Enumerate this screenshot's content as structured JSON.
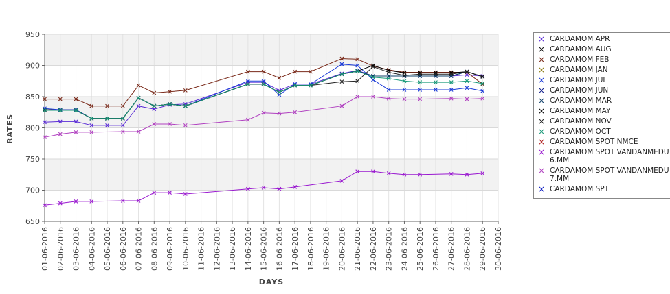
{
  "chart_data": {
    "type": "line",
    "xlabel": "DAYS",
    "ylabel": "RATES",
    "ylim": [
      650,
      950
    ],
    "yticks": [
      650,
      700,
      750,
      800,
      850,
      900,
      950
    ],
    "grid": true,
    "legend_position": "right",
    "x": [
      "01-06-2016",
      "02-06-2016",
      "03-06-2016",
      "04-06-2016",
      "05-06-2016",
      "06-06-2016",
      "07-06-2016",
      "08-06-2016",
      "09-06-2016",
      "10-06-2016",
      "11-06-2016",
      "12-06-2016",
      "13-06-2016",
      "14-06-2016",
      "15-06-2016",
      "16-06-2016",
      "17-06-2016",
      "18-06-2016",
      "19-06-2016",
      "20-06-2016",
      "21-06-2016",
      "22-06-2016",
      "23-06-2016",
      "24-06-2016",
      "25-06-2016",
      "26-06-2016",
      "27-06-2016",
      "28-06-2016",
      "29-06-2016",
      "30-06-2016"
    ],
    "series": [
      {
        "name": "CARDAMOM APR",
        "color": "#5a2bd6",
        "values": [
          809,
          810,
          810,
          804,
          804,
          804,
          835,
          830,
          837,
          838,
          null,
          null,
          null,
          873,
          873,
          860,
          870,
          870,
          null,
          887,
          892,
          883,
          883,
          883,
          883,
          883,
          883,
          885,
          883,
          null
        ]
      },
      {
        "name": "CARDAMOM AUG",
        "color": "#111111",
        "values": [
          829,
          829,
          829,
          815,
          815,
          815,
          848,
          835,
          838,
          835,
          null,
          null,
          null,
          870,
          870,
          857,
          868,
          868,
          null,
          886,
          891,
          883,
          883,
          883,
          883,
          883,
          883,
          890,
          882,
          null
        ]
      },
      {
        "name": "CARDAMOM FEB",
        "color": "#7a2a1a",
        "values": [
          846,
          846,
          846,
          835,
          835,
          835,
          868,
          856,
          858,
          860,
          null,
          null,
          null,
          890,
          890,
          880,
          890,
          890,
          null,
          911,
          910,
          899,
          893,
          889,
          889,
          889,
          889,
          889,
          870,
          null
        ]
      },
      {
        "name": "CARDAMOM JAN",
        "color": "#8a7a10",
        "values": [
          null,
          null,
          null,
          null,
          null,
          null,
          null,
          null,
          null,
          null,
          null,
          null,
          null,
          null,
          null,
          null,
          null,
          null,
          null,
          null,
          null,
          null,
          null,
          null,
          null,
          null,
          null,
          null,
          null,
          null
        ]
      },
      {
        "name": "CARDAMOM JUL",
        "color": "#1a3ad8",
        "values": [
          831,
          829,
          829,
          815,
          815,
          815,
          848,
          835,
          838,
          835,
          null,
          null,
          null,
          875,
          875,
          853,
          870,
          870,
          null,
          902,
          900,
          877,
          861,
          861,
          861,
          861,
          861,
          864,
          859,
          null
        ]
      },
      {
        "name": "CARDAMOM JUN",
        "color": "#0c1a8a",
        "values": [
          828,
          828,
          828,
          815,
          815,
          815,
          848,
          835,
          838,
          835,
          null,
          null,
          null,
          870,
          870,
          857,
          868,
          868,
          null,
          886,
          891,
          883,
          883,
          883,
          883,
          883,
          883,
          890,
          882,
          null
        ]
      },
      {
        "name": "CARDAMOM MAR",
        "color": "#10406a",
        "values": [
          828,
          828,
          828,
          815,
          815,
          815,
          848,
          835,
          838,
          835,
          null,
          null,
          null,
          870,
          870,
          857,
          868,
          868,
          null,
          886,
          891,
          883,
          883,
          883,
          883,
          883,
          883,
          890,
          882,
          null
        ]
      },
      {
        "name": "CARDAMOM MAY",
        "color": "#000000",
        "values": [
          828,
          828,
          828,
          815,
          815,
          815,
          848,
          835,
          838,
          835,
          null,
          null,
          null,
          870,
          870,
          857,
          868,
          868,
          null,
          886,
          891,
          900,
          892,
          888,
          888,
          888,
          888,
          890,
          882,
          null
        ]
      },
      {
        "name": "CARDAMOM NOV",
        "color": "#222222",
        "values": [
          828,
          828,
          828,
          815,
          815,
          815,
          848,
          835,
          838,
          835,
          null,
          null,
          null,
          870,
          870,
          857,
          868,
          868,
          null,
          874,
          875,
          898,
          889,
          884,
          886,
          886,
          886,
          890,
          882,
          null
        ]
      },
      {
        "name": "CARDAMOM OCT",
        "color": "#1a9a7a",
        "values": [
          828,
          828,
          828,
          815,
          815,
          815,
          848,
          835,
          838,
          835,
          null,
          null,
          null,
          870,
          870,
          857,
          868,
          868,
          null,
          886,
          891,
          881,
          879,
          875,
          873,
          873,
          873,
          875,
          871,
          null
        ]
      },
      {
        "name": "CARDAMOM SPOT NMCE",
        "color": "#b02020",
        "values": [
          null,
          null,
          null,
          null,
          null,
          null,
          null,
          null,
          null,
          null,
          null,
          null,
          null,
          null,
          null,
          null,
          null,
          null,
          null,
          null,
          null,
          null,
          null,
          null,
          null,
          null,
          null,
          null,
          null,
          null
        ]
      },
      {
        "name": "CARDAMOM SPOT VANDANMEDU 6.MM",
        "color": "#9a1ad0",
        "values": [
          676,
          679,
          682,
          682,
          null,
          683,
          683,
          696,
          696,
          694,
          null,
          null,
          null,
          702,
          704,
          702,
          705,
          null,
          null,
          715,
          730,
          730,
          727,
          725,
          725,
          null,
          726,
          725,
          727,
          null
        ]
      },
      {
        "name": "CARDAMOM SPOT VANDANMEDU 7.MM",
        "color": "#b040c0",
        "values": [
          785,
          790,
          793,
          793,
          null,
          794,
          794,
          806,
          806,
          804,
          null,
          null,
          null,
          813,
          824,
          823,
          825,
          null,
          null,
          835,
          850,
          850,
          847,
          846,
          846,
          null,
          847,
          846,
          847,
          null
        ]
      },
      {
        "name": "CARDAMOM SPT",
        "color": "#0a1ac0",
        "values": [
          null,
          null,
          null,
          null,
          null,
          null,
          null,
          null,
          null,
          null,
          null,
          null,
          null,
          null,
          null,
          null,
          null,
          null,
          null,
          null,
          null,
          null,
          null,
          null,
          null,
          null,
          null,
          null,
          null,
          null
        ]
      }
    ]
  },
  "legend_labels": [
    "CARDAMOM APR",
    "CARDAMOM AUG",
    "CARDAMOM FEB",
    "CARDAMOM JAN",
    "CARDAMOM JUL",
    "CARDAMOM JUN",
    "CARDAMOM MAR",
    "CARDAMOM MAY",
    "CARDAMOM NOV",
    "CARDAMOM OCT",
    "CARDAMOM SPOT NMCE",
    "CARDAMOM SPOT VANDANMEDU\n6.MM",
    "CARDAMOM SPOT VANDANMEDU\n7.MM",
    "CARDAMOM SPT"
  ],
  "marker_glyph": "×"
}
